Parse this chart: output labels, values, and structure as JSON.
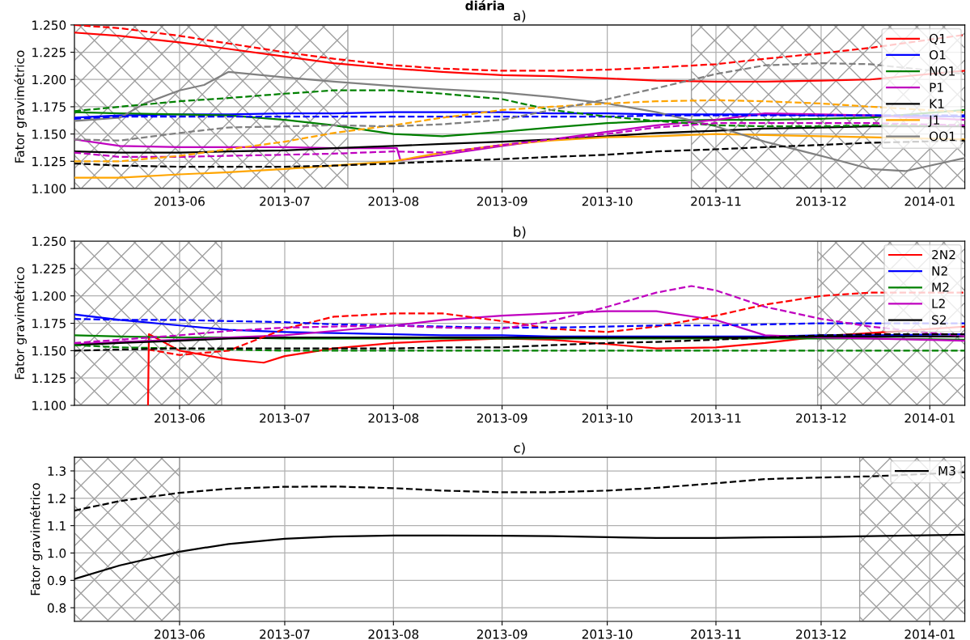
{
  "chart_data": [
    {
      "type": "line",
      "title": "a)",
      "annotations": [
        "diária"
      ],
      "ylabel": "Fator gravimétrico",
      "xlim": [
        "2013-05-02",
        "2014-01-11"
      ],
      "ylim": [
        1.1,
        1.25
      ],
      "xticks": [
        {
          "value": "2013-06-01",
          "label": "2013-06"
        },
        {
          "value": "2013-07-01",
          "label": "2013-07"
        },
        {
          "value": "2013-08-01",
          "label": "2013-08"
        },
        {
          "value": "2013-09-01",
          "label": "2013-09"
        },
        {
          "value": "2013-10-01",
          "label": "2013-10"
        },
        {
          "value": "2013-11-01",
          "label": "2013-11"
        },
        {
          "value": "2013-12-01",
          "label": "2013-12"
        },
        {
          "value": "2014-01-01",
          "label": "2014-01"
        }
      ],
      "yticks": [
        {
          "value": 1.1,
          "label": "1.100"
        },
        {
          "value": 1.125,
          "label": "1.125"
        },
        {
          "value": 1.15,
          "label": "1.150"
        },
        {
          "value": 1.175,
          "label": "1.175"
        },
        {
          "value": 1.2,
          "label": "1.200"
        },
        {
          "value": 1.225,
          "label": "1.225"
        },
        {
          "value": 1.25,
          "label": "1.250"
        }
      ],
      "grid": true,
      "legend": "top right",
      "bands": [
        {
          "axis": "x",
          "from": "2013-05-02",
          "to": "2013-07-19",
          "color": "#a0a0a0"
        },
        {
          "axis": "x",
          "from": "2013-10-25",
          "to": "2014-01-11",
          "color": "#a0a0a0"
        }
      ],
      "x": [
        "2013-05-02",
        "2013-05-15",
        "2013-06-01",
        "2013-06-15",
        "2013-07-01",
        "2013-07-15",
        "2013-08-01",
        "2013-08-15",
        "2013-09-01",
        "2013-09-15",
        "2013-10-01",
        "2013-10-15",
        "2013-11-01",
        "2013-11-15",
        "2013-12-01",
        "2013-12-15",
        "2014-01-11"
      ],
      "series": [
        {
          "name": "Q1",
          "color": "#ff0000",
          "line_style": "solid",
          "values": [
            1.243,
            1.24,
            1.234,
            1.228,
            1.221,
            1.215,
            1.21,
            1.207,
            1.204,
            1.203,
            1.201,
            1.199,
            1.198,
            1.198,
            1.199,
            1.2,
            1.208
          ]
        },
        {
          "name": "O1",
          "color": "#0000ff",
          "line_style": "solid",
          "values": [
            1.165,
            1.167,
            1.168,
            1.168,
            1.169,
            1.169,
            1.17,
            1.17,
            1.17,
            1.169,
            1.169,
            1.168,
            1.168,
            1.168,
            1.167,
            1.167,
            1.166
          ]
        },
        {
          "name": "NO1",
          "color": "#008000",
          "line_style": "solid",
          "values": [
            1.17,
            1.169,
            1.168,
            1.167,
            1.163,
            1.158,
            1.15,
            1.148,
            1.152,
            1.156,
            1.16,
            1.162,
            1.163,
            1.163,
            1.164,
            1.165,
            1.172
          ]
        },
        {
          "name": "P1",
          "color": "#bf00bf",
          "line_style": "solid",
          "x": [
            "2013-05-02",
            "2013-05-15",
            "2013-06-01",
            "2013-06-15",
            "2013-07-01",
            "2013-07-15",
            "2013-08-01",
            "2013-08-02",
            "2013-08-03",
            "2013-08-15",
            "2013-09-01",
            "2013-09-15",
            "2013-10-01",
            "2013-10-15",
            "2013-11-01",
            "2013-11-15",
            "2013-12-01",
            "2013-12-15",
            "2014-01-11"
          ],
          "values": [
            1.145,
            1.139,
            1.138,
            1.138,
            1.138,
            1.137,
            1.137,
            1.137,
            1.126,
            1.131,
            1.139,
            1.145,
            1.152,
            1.158,
            1.163,
            1.169,
            1.168,
            1.167,
            1.163
          ]
        },
        {
          "name": "K1",
          "color": "#000000",
          "line_style": "solid",
          "values": [
            1.134,
            1.133,
            1.133,
            1.134,
            1.135,
            1.137,
            1.139,
            1.141,
            1.143,
            1.145,
            1.148,
            1.151,
            1.153,
            1.155,
            1.156,
            1.157,
            1.157
          ]
        },
        {
          "name": "J1",
          "color": "#ffa500",
          "line_style": "solid",
          "values": [
            1.11,
            1.11,
            1.113,
            1.115,
            1.118,
            1.121,
            1.125,
            1.133,
            1.14,
            1.144,
            1.147,
            1.148,
            1.15,
            1.149,
            1.148,
            1.147,
            1.145
          ]
        },
        {
          "name": "OO1",
          "color": "#808080",
          "line_style": "solid",
          "x": [
            "2013-05-02",
            "2013-05-15",
            "2013-05-22",
            "2013-06-01",
            "2013-06-08",
            "2013-06-15",
            "2013-07-01",
            "2013-07-15",
            "2013-08-01",
            "2013-08-15",
            "2013-09-01",
            "2013-09-15",
            "2013-10-01",
            "2013-10-15",
            "2013-11-01",
            "2013-11-15",
            "2013-12-01",
            "2013-12-15",
            "2013-12-25",
            "2014-01-11"
          ],
          "values": [
            1.162,
            1.165,
            1.178,
            1.19,
            1.195,
            1.207,
            1.202,
            1.198,
            1.194,
            1.191,
            1.188,
            1.184,
            1.178,
            1.17,
            1.157,
            1.143,
            1.13,
            1.118,
            1.116,
            1.128
          ]
        },
        {
          "color": "#ff0000",
          "line_style": "dashed",
          "values": [
            1.25,
            1.247,
            1.24,
            1.233,
            1.225,
            1.219,
            1.213,
            1.21,
            1.208,
            1.208,
            1.209,
            1.211,
            1.214,
            1.219,
            1.224,
            1.229,
            1.241
          ]
        },
        {
          "color": "#0000ff",
          "line_style": "dashed",
          "values": [
            1.164,
            1.166,
            1.166,
            1.166,
            1.166,
            1.166,
            1.166,
            1.166,
            1.166,
            1.166,
            1.166,
            1.167,
            1.167,
            1.167,
            1.167,
            1.167,
            1.167
          ]
        },
        {
          "color": "#008000",
          "line_style": "dashed",
          "values": [
            1.171,
            1.175,
            1.18,
            1.183,
            1.187,
            1.19,
            1.19,
            1.187,
            1.182,
            1.172,
            1.166,
            1.162,
            1.158,
            1.157,
            1.157,
            1.158,
            1.158
          ]
        },
        {
          "color": "#bf00bf",
          "line_style": "dashed",
          "values": [
            1.133,
            1.129,
            1.129,
            1.13,
            1.131,
            1.132,
            1.134,
            1.133,
            1.14,
            1.145,
            1.15,
            1.156,
            1.16,
            1.16,
            1.16,
            1.16,
            1.158
          ]
        },
        {
          "color": "#000000",
          "line_style": "dashed",
          "values": [
            1.123,
            1.121,
            1.12,
            1.12,
            1.12,
            1.121,
            1.123,
            1.125,
            1.127,
            1.129,
            1.131,
            1.134,
            1.136,
            1.138,
            1.14,
            1.142,
            1.144
          ]
        },
        {
          "color": "#ffa500",
          "line_style": "dashed",
          "values": [
            1.125,
            1.125,
            1.13,
            1.136,
            1.143,
            1.151,
            1.158,
            1.165,
            1.172,
            1.175,
            1.178,
            1.18,
            1.181,
            1.18,
            1.178,
            1.175,
            1.17
          ]
        },
        {
          "color": "#808080",
          "line_style": "dashed",
          "values": [
            1.145,
            1.144,
            1.151,
            1.156,
            1.157,
            1.158,
            1.157,
            1.159,
            1.163,
            1.172,
            1.182,
            1.192,
            1.205,
            1.213,
            1.215,
            1.214,
            1.205
          ]
        }
      ]
    },
    {
      "type": "line",
      "title": "b)",
      "ylabel": "Fator gravimétrico",
      "xlim": [
        "2013-05-02",
        "2014-01-11"
      ],
      "ylim": [
        1.1,
        1.25
      ],
      "xticks": [
        {
          "value": "2013-06-01",
          "label": "2013-06"
        },
        {
          "value": "2013-07-01",
          "label": "2013-07"
        },
        {
          "value": "2013-08-01",
          "label": "2013-08"
        },
        {
          "value": "2013-09-01",
          "label": "2013-09"
        },
        {
          "value": "2013-10-01",
          "label": "2013-10"
        },
        {
          "value": "2013-11-01",
          "label": "2013-11"
        },
        {
          "value": "2013-12-01",
          "label": "2013-12"
        },
        {
          "value": "2014-01-01",
          "label": "2014-01"
        }
      ],
      "yticks": [
        {
          "value": 1.1,
          "label": "1.100"
        },
        {
          "value": 1.125,
          "label": "1.125"
        },
        {
          "value": 1.15,
          "label": "1.150"
        },
        {
          "value": 1.175,
          "label": "1.175"
        },
        {
          "value": 1.2,
          "label": "1.200"
        },
        {
          "value": 1.225,
          "label": "1.225"
        },
        {
          "value": 1.25,
          "label": "1.250"
        }
      ],
      "grid": true,
      "legend": "top right",
      "bands": [
        {
          "axis": "x",
          "from": "2013-05-02",
          "to": "2013-06-13",
          "color": "#a0a0a0"
        },
        {
          "axis": "x",
          "from": "2013-11-30",
          "to": "2014-01-11",
          "color": "#a0a0a0"
        }
      ],
      "x": [
        "2013-05-02",
        "2013-05-15",
        "2013-06-01",
        "2013-06-15",
        "2013-07-01",
        "2013-07-15",
        "2013-08-01",
        "2013-08-15",
        "2013-09-01",
        "2013-09-15",
        "2013-10-01",
        "2013-10-15",
        "2013-11-01",
        "2013-11-15",
        "2013-12-01",
        "2013-12-15",
        "2014-01-11"
      ],
      "series": [
        {
          "name": "2N2",
          "color": "#ff0000",
          "line_style": "solid",
          "x": [
            "2013-05-23",
            "2013-05-23T06:00",
            "2013-06-01",
            "2013-06-15",
            "2013-06-25",
            "2013-07-01",
            "2013-07-15",
            "2013-08-01",
            "2013-08-15",
            "2013-09-01",
            "2013-09-15",
            "2013-10-01",
            "2013-10-15",
            "2013-11-01",
            "2013-11-15",
            "2013-12-01",
            "2013-12-15",
            "2014-01-11"
          ],
          "values": [
            1.1,
            1.165,
            1.15,
            1.142,
            1.139,
            1.145,
            1.152,
            1.157,
            1.159,
            1.161,
            1.16,
            1.156,
            1.152,
            1.153,
            1.157,
            1.163,
            1.166,
            1.172
          ]
        },
        {
          "name": "N2",
          "color": "#0000ff",
          "line_style": "solid",
          "values": [
            1.183,
            1.178,
            1.173,
            1.169,
            1.167,
            1.166,
            1.165,
            1.164,
            1.164,
            1.163,
            1.163,
            1.163,
            1.163,
            1.163,
            1.164,
            1.164,
            1.165
          ]
        },
        {
          "name": "M2",
          "color": "#008000",
          "line_style": "solid",
          "values": [
            1.164,
            1.163,
            1.162,
            1.162,
            1.161,
            1.161,
            1.161,
            1.161,
            1.161,
            1.161,
            1.161,
            1.161,
            1.161,
            1.161,
            1.161,
            1.161,
            1.16
          ]
        },
        {
          "name": "L2",
          "color": "#bf00bf",
          "line_style": "solid",
          "values": [
            1.156,
            1.158,
            1.16,
            1.162,
            1.164,
            1.168,
            1.173,
            1.178,
            1.182,
            1.184,
            1.186,
            1.186,
            1.178,
            1.164,
            1.162,
            1.161,
            1.159
          ]
        },
        {
          "name": "S2",
          "color": "#000000",
          "line_style": "solid",
          "values": [
            1.155,
            1.157,
            1.159,
            1.161,
            1.162,
            1.162,
            1.162,
            1.162,
            1.162,
            1.162,
            1.162,
            1.162,
            1.162,
            1.162,
            1.163,
            1.163,
            1.163
          ]
        },
        {
          "color": "#ff0000",
          "line_style": "dashed",
          "x": [
            "2013-05-23",
            "2013-06-01",
            "2013-06-15",
            "2013-07-01",
            "2013-07-15",
            "2013-08-01",
            "2013-08-15",
            "2013-09-01",
            "2013-09-15",
            "2013-10-01",
            "2013-10-15",
            "2013-11-01",
            "2013-11-15",
            "2013-12-01",
            "2013-12-15",
            "2014-01-11"
          ],
          "values": [
            1.151,
            1.146,
            1.15,
            1.17,
            1.181,
            1.184,
            1.184,
            1.177,
            1.17,
            1.167,
            1.172,
            1.182,
            1.192,
            1.2,
            1.203,
            1.203
          ]
        },
        {
          "color": "#0000ff",
          "line_style": "dashed",
          "values": [
            1.179,
            1.178,
            1.178,
            1.177,
            1.176,
            1.174,
            1.173,
            1.172,
            1.171,
            1.171,
            1.172,
            1.173,
            1.173,
            1.174,
            1.175,
            1.175,
            1.175
          ]
        },
        {
          "color": "#008000",
          "line_style": "dashed",
          "values": [
            1.155,
            1.153,
            1.152,
            1.151,
            1.15,
            1.15,
            1.15,
            1.15,
            1.15,
            1.15,
            1.15,
            1.15,
            1.15,
            1.15,
            1.15,
            1.15,
            1.15
          ]
        },
        {
          "color": "#bf00bf",
          "line_style": "dashed",
          "x": [
            "2013-05-02",
            "2013-05-15",
            "2013-06-01",
            "2013-06-15",
            "2013-07-01",
            "2013-07-15",
            "2013-08-01",
            "2013-08-15",
            "2013-09-01",
            "2013-09-15",
            "2013-10-01",
            "2013-10-15",
            "2013-10-25",
            "2013-11-01",
            "2013-11-15",
            "2013-12-01",
            "2013-12-15",
            "2014-01-11"
          ],
          "values": [
            1.157,
            1.16,
            1.164,
            1.168,
            1.171,
            1.172,
            1.173,
            1.171,
            1.17,
            1.177,
            1.19,
            1.203,
            1.209,
            1.205,
            1.19,
            1.179,
            1.172,
            1.163
          ]
        },
        {
          "color": "#000000",
          "line_style": "dashed",
          "values": [
            1.15,
            1.151,
            1.152,
            1.152,
            1.152,
            1.152,
            1.152,
            1.153,
            1.153,
            1.155,
            1.157,
            1.158,
            1.16,
            1.162,
            1.164,
            1.165,
            1.165
          ]
        }
      ]
    },
    {
      "type": "line",
      "title": "c)",
      "ylabel": "Fator gravimétrico",
      "xlim": [
        "2013-05-02",
        "2014-01-11"
      ],
      "ylim": [
        0.75,
        1.35
      ],
      "xticks": [
        {
          "value": "2013-06-01",
          "label": "2013-06"
        },
        {
          "value": "2013-07-01",
          "label": "2013-07"
        },
        {
          "value": "2013-08-01",
          "label": "2013-08"
        },
        {
          "value": "2013-09-01",
          "label": "2013-09"
        },
        {
          "value": "2013-10-01",
          "label": "2013-10"
        },
        {
          "value": "2013-11-01",
          "label": "2013-11"
        },
        {
          "value": "2013-12-01",
          "label": "2013-12"
        },
        {
          "value": "2014-01-01",
          "label": "2014-01"
        }
      ],
      "yticks": [
        0.8,
        0.9,
        {
          "value": 1.0,
          "label": "1.0"
        },
        1.1,
        1.2,
        1.3
      ],
      "grid": true,
      "legend": "top right",
      "bands": [
        {
          "axis": "x",
          "from": "2013-05-02",
          "to": "2013-06-01",
          "color": "#a0a0a0"
        },
        {
          "axis": "x",
          "from": "2013-12-12",
          "to": "2014-01-11",
          "color": "#a0a0a0"
        }
      ],
      "x": [
        "2013-05-02",
        "2013-05-15",
        "2013-06-01",
        "2013-06-15",
        "2013-07-01",
        "2013-07-15",
        "2013-08-01",
        "2013-08-15",
        "2013-09-01",
        "2013-09-15",
        "2013-10-01",
        "2013-10-15",
        "2013-11-01",
        "2013-11-15",
        "2013-12-01",
        "2013-12-15",
        "2014-01-11"
      ],
      "series": [
        {
          "name": "M3",
          "color": "#000000",
          "line_style": "solid",
          "values": [
            0.905,
            0.955,
            1.005,
            1.033,
            1.052,
            1.06,
            1.064,
            1.064,
            1.063,
            1.062,
            1.058,
            1.055,
            1.055,
            1.057,
            1.059,
            1.062,
            1.067
          ]
        },
        {
          "color": "#000000",
          "line_style": "dashed",
          "values": [
            1.155,
            1.19,
            1.22,
            1.235,
            1.242,
            1.243,
            1.237,
            1.228,
            1.222,
            1.222,
            1.228,
            1.238,
            1.255,
            1.27,
            1.276,
            1.28,
            1.295
          ]
        }
      ]
    }
  ]
}
